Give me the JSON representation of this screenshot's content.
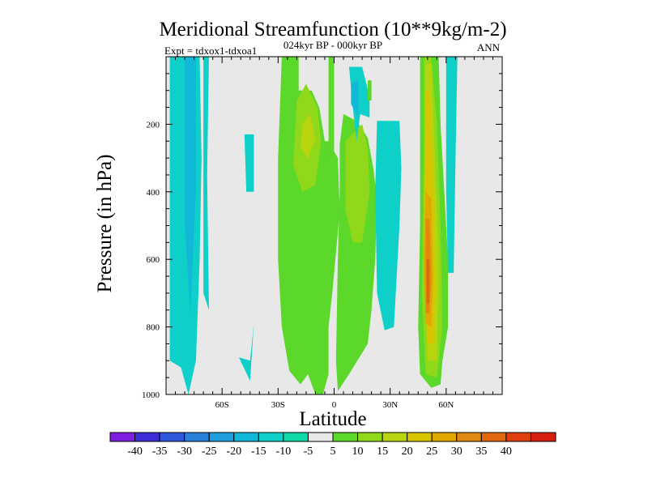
{
  "chart_data": {
    "type": "contour",
    "title": "Meridional Streamfunction (10**9kg/m-2)",
    "subtitle_left": "Expt = tdxox1-tdxoa1",
    "subtitle_center": "024kyr BP - 000kyr BP",
    "subtitle_right": "ANN",
    "xlabel": "Latitude",
    "ylabel": "Pressure (in hPa)",
    "xlim": [
      -90,
      90
    ],
    "ylim": [
      1000,
      0
    ],
    "x_ticks": [
      {
        "value": -60,
        "label": "60S"
      },
      {
        "value": -30,
        "label": "30S"
      },
      {
        "value": 0,
        "label": "0"
      },
      {
        "value": 30,
        "label": "30N"
      },
      {
        "value": 60,
        "label": "60N"
      }
    ],
    "y_ticks": [
      {
        "value": 200,
        "label": "200"
      },
      {
        "value": 400,
        "label": "400"
      },
      {
        "value": 600,
        "label": "600"
      },
      {
        "value": 800,
        "label": "800"
      },
      {
        "value": 1000,
        "label": "1000"
      }
    ],
    "colorbar": {
      "colors": [
        "#7f1fe0",
        "#3d2fd8",
        "#2f58dc",
        "#2a7fd8",
        "#1f9fe0",
        "#11b8d8",
        "#0fd0c8",
        "#12d9a8",
        "#e8e8e8",
        "#5bd82a",
        "#8fd81a",
        "#b8d40f",
        "#d8c400",
        "#e0a800",
        "#e08810",
        "#e06810",
        "#e04010",
        "#d81f0f"
      ],
      "labels": [
        "-40",
        "-35",
        "-30",
        "-25",
        "-20",
        "-15",
        "-10",
        "-5",
        "5",
        "10",
        "15",
        "20",
        "25",
        "30",
        "35",
        "40"
      ]
    },
    "regions": [
      {
        "level": -10,
        "color": "#0fd0c8",
        "pts": [
          [
            -88,
            0
          ],
          [
            -72,
            0
          ],
          [
            -71,
            300
          ],
          [
            -72,
            600
          ],
          [
            -74,
            900
          ],
          [
            -78,
            1000
          ],
          [
            -82,
            920
          ],
          [
            -88,
            900
          ]
        ]
      },
      {
        "level": -15,
        "color": "#11b8d8",
        "pts": [
          [
            -80,
            0
          ],
          [
            -74,
            0
          ],
          [
            -74,
            400
          ],
          [
            -77,
            760
          ],
          [
            -80,
            500
          ]
        ]
      },
      {
        "level": -10,
        "color": "#0fd0c8",
        "pts": [
          [
            -70,
            0
          ],
          [
            -67,
            0
          ],
          [
            -68,
            350
          ],
          [
            -67,
            750
          ],
          [
            -70,
            700
          ]
        ]
      },
      {
        "level": -10,
        "color": "#0fd0c8",
        "pts": [
          [
            -48,
            230
          ],
          [
            -43,
            230
          ],
          [
            -43,
            400
          ],
          [
            -47,
            400
          ]
        ]
      },
      {
        "level": -10,
        "color": "#0fd0c8",
        "pts": [
          [
            -51,
            890
          ],
          [
            -45,
            900
          ],
          [
            -43,
            790
          ],
          [
            -45,
            960
          ]
        ]
      },
      {
        "level": 5,
        "color": "#5bd82a",
        "pts": [
          [
            -28,
            0
          ],
          [
            -19,
            0
          ],
          [
            -19,
            100
          ],
          [
            -12,
            100
          ],
          [
            -8,
            150
          ],
          [
            -5,
            250
          ],
          [
            -3,
            250
          ],
          [
            2,
            300
          ],
          [
            3,
            460
          ],
          [
            -1,
            700
          ],
          [
            -3,
            800
          ],
          [
            -3,
            940
          ],
          [
            -6,
            1000
          ],
          [
            -10,
            1000
          ],
          [
            -14,
            940
          ],
          [
            -18,
            970
          ],
          [
            -24,
            930
          ],
          [
            -28,
            800
          ],
          [
            -30,
            600
          ],
          [
            -30,
            300
          ]
        ]
      },
      {
        "level": 5,
        "color": "#5bd82a",
        "pts": [
          [
            -3,
            0
          ],
          [
            0,
            0
          ],
          [
            0,
            300
          ],
          [
            -3,
            300
          ]
        ]
      },
      {
        "level": 5,
        "color": "#5bd82a",
        "pts": [
          [
            3,
            260
          ],
          [
            5,
            170
          ],
          [
            12,
            190
          ],
          [
            18,
            240
          ],
          [
            21,
            330
          ],
          [
            23,
            420
          ],
          [
            22,
            600
          ],
          [
            20,
            750
          ],
          [
            18,
            850
          ],
          [
            8,
            940
          ],
          [
            2,
            990
          ],
          [
            1,
            900
          ],
          [
            2,
            600
          ],
          [
            3,
            400
          ]
        ]
      },
      {
        "level": 10,
        "color": "#8fd81a",
        "pts": [
          [
            -20,
            130
          ],
          [
            -15,
            80
          ],
          [
            -9,
            150
          ],
          [
            -7,
            250
          ],
          [
            -10,
            380
          ],
          [
            -17,
            400
          ],
          [
            -22,
            320
          ],
          [
            -21,
            230
          ]
        ]
      },
      {
        "level": 15,
        "color": "#b8d40f",
        "pts": [
          [
            -17,
            200
          ],
          [
            -13,
            170
          ],
          [
            -10,
            240
          ],
          [
            -14,
            300
          ],
          [
            -18,
            270
          ]
        ]
      },
      {
        "level": 10,
        "color": "#8fd81a",
        "pts": [
          [
            6,
            250
          ],
          [
            15,
            200
          ],
          [
            18,
            270
          ],
          [
            19,
            400
          ],
          [
            15,
            550
          ],
          [
            10,
            550
          ],
          [
            6,
            450
          ]
        ]
      },
      {
        "level": -10,
        "color": "#0fd0c8",
        "pts": [
          [
            8,
            30
          ],
          [
            15,
            30
          ],
          [
            19,
            120
          ],
          [
            19,
            180
          ],
          [
            14,
            170
          ],
          [
            12,
            250
          ],
          [
            10,
            150
          ]
        ]
      },
      {
        "level": -15,
        "color": "#11b8d8",
        "pts": [
          [
            9,
            80
          ],
          [
            13,
            70
          ],
          [
            13,
            180
          ],
          [
            9,
            140
          ]
        ]
      },
      {
        "level": 5,
        "color": "#5bd82a",
        "pts": [
          [
            18,
            70
          ],
          [
            20,
            70
          ],
          [
            20,
            130
          ],
          [
            18,
            130
          ]
        ]
      },
      {
        "level": -10,
        "color": "#0fd0c8",
        "pts": [
          [
            23,
            190
          ],
          [
            35,
            190
          ],
          [
            36,
            330
          ],
          [
            35,
            500
          ],
          [
            32,
            800
          ],
          [
            27,
            810
          ],
          [
            23,
            700
          ],
          [
            22,
            400
          ]
        ]
      },
      {
        "level": 5,
        "color": "#5bd82a",
        "pts": [
          [
            46,
            0
          ],
          [
            53,
            0
          ],
          [
            56,
            0
          ],
          [
            57,
            200
          ],
          [
            59,
            400
          ],
          [
            61,
            600
          ],
          [
            61,
            800
          ],
          [
            58,
            900
          ],
          [
            57,
            970
          ],
          [
            52,
            980
          ],
          [
            46,
            940
          ],
          [
            45,
            800
          ],
          [
            46,
            500
          ]
        ]
      },
      {
        "level": 10,
        "color": "#8fd81a",
        "pts": [
          [
            48,
            0
          ],
          [
            52,
            0
          ],
          [
            55,
            200
          ],
          [
            57,
            500
          ],
          [
            58,
            800
          ],
          [
            55,
            950
          ],
          [
            49,
            940
          ],
          [
            47,
            700
          ],
          [
            48,
            300
          ]
        ]
      },
      {
        "level": 15,
        "color": "#b8d40f",
        "pts": [
          [
            49,
            20
          ],
          [
            52,
            20
          ],
          [
            54,
            300
          ],
          [
            56,
            600
          ],
          [
            55,
            900
          ],
          [
            50,
            900
          ],
          [
            48,
            600
          ],
          [
            49,
            300
          ]
        ]
      },
      {
        "level": 20,
        "color": "#d8c400",
        "pts": [
          [
            49,
            100
          ],
          [
            51,
            100
          ],
          [
            53,
            400
          ],
          [
            54,
            700
          ],
          [
            53,
            850
          ],
          [
            50,
            850
          ],
          [
            48,
            600
          ]
        ]
      },
      {
        "level": 25,
        "color": "#e0a800",
        "pts": [
          [
            49,
            400
          ],
          [
            52,
            420
          ],
          [
            53,
            650
          ],
          [
            52,
            800
          ],
          [
            49,
            790
          ],
          [
            48,
            600
          ]
        ]
      },
      {
        "level": 30,
        "color": "#e08810",
        "pts": [
          [
            49,
            480
          ],
          [
            51,
            480
          ],
          [
            52,
            660
          ],
          [
            51,
            760
          ],
          [
            49,
            760
          ]
        ]
      },
      {
        "level": 35,
        "color": "#e06810",
        "pts": [
          [
            49.5,
            600
          ],
          [
            51,
            600
          ],
          [
            51,
            730
          ],
          [
            49.5,
            730
          ]
        ]
      },
      {
        "level": -10,
        "color": "#0fd0c8",
        "pts": [
          [
            60,
            0
          ],
          [
            66,
            0
          ],
          [
            65,
            300
          ],
          [
            64,
            640
          ],
          [
            61,
            640
          ],
          [
            60,
            400
          ]
        ]
      }
    ]
  }
}
